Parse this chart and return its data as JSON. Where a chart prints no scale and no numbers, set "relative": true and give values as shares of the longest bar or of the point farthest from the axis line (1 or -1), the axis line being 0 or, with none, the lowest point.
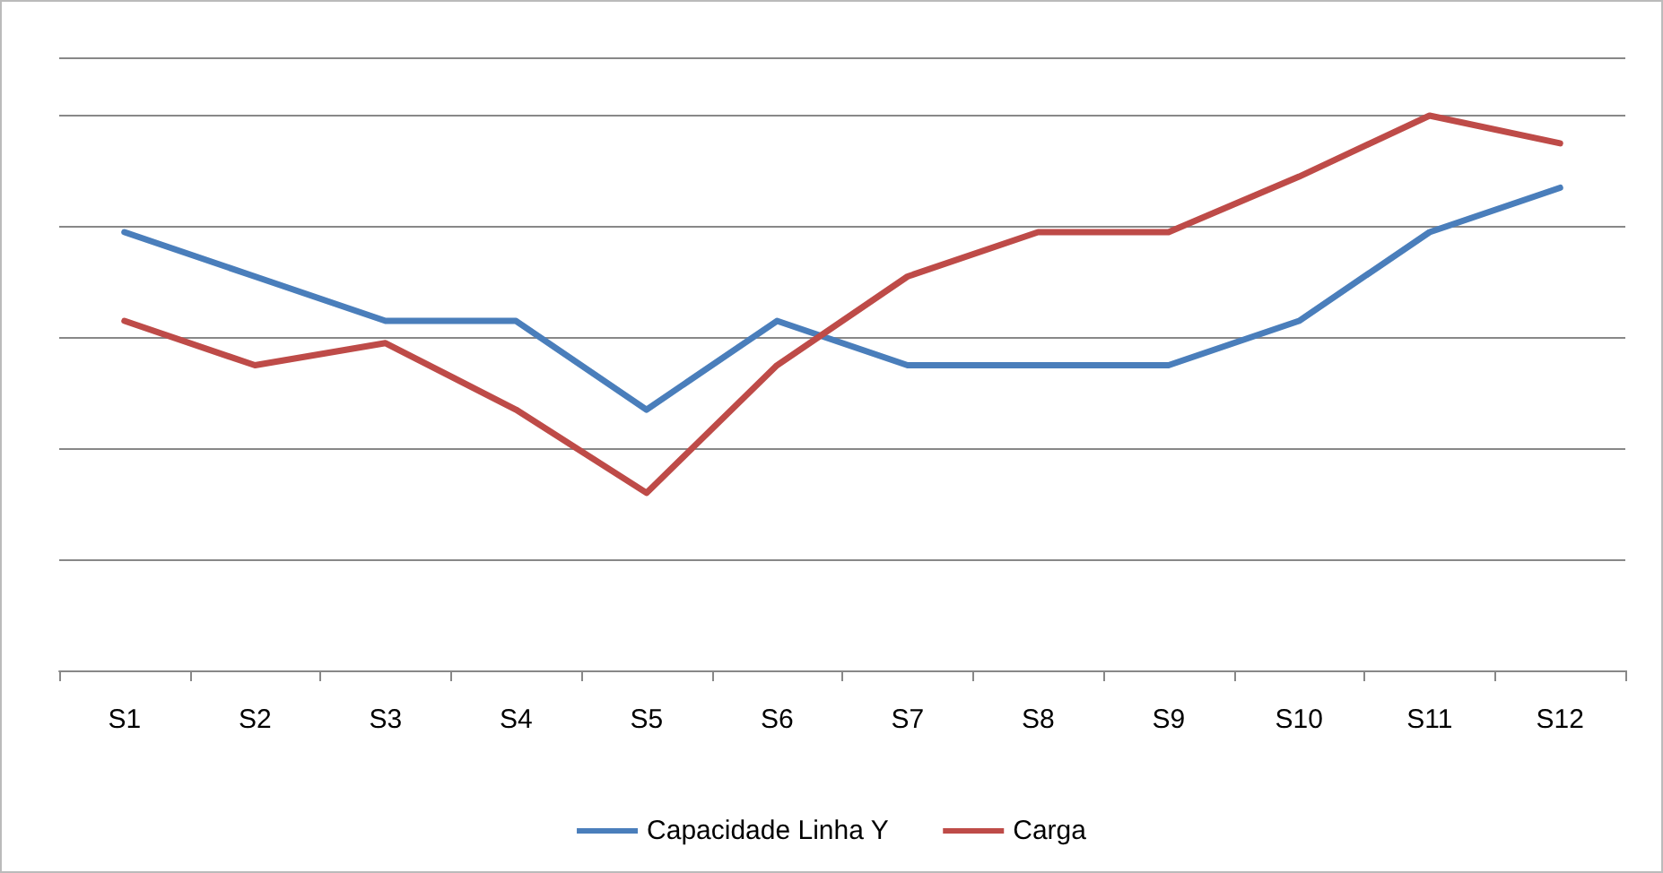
{
  "chart_data": {
    "type": "line",
    "relative": true,
    "categories": [
      "S1",
      "S2",
      "S3",
      "S4",
      "S5",
      "S6",
      "S7",
      "S8",
      "S9",
      "S10",
      "S11",
      "S12"
    ],
    "series": [
      {
        "name": "Capacidade Linha Y",
        "color": "#4a7ebb",
        "values": [
          0.79,
          0.71,
          0.63,
          0.63,
          0.47,
          0.63,
          0.55,
          0.55,
          0.55,
          0.63,
          0.79,
          0.87
        ]
      },
      {
        "name": "Carga",
        "color": "#be4b48",
        "values": [
          0.63,
          0.55,
          0.59,
          0.47,
          0.32,
          0.55,
          0.71,
          0.79,
          0.79,
          0.89,
          1,
          0.95
        ]
      }
    ],
    "grid": "y",
    "legend": "bottom",
    "marker": "none",
    "line_style": "solid"
  }
}
